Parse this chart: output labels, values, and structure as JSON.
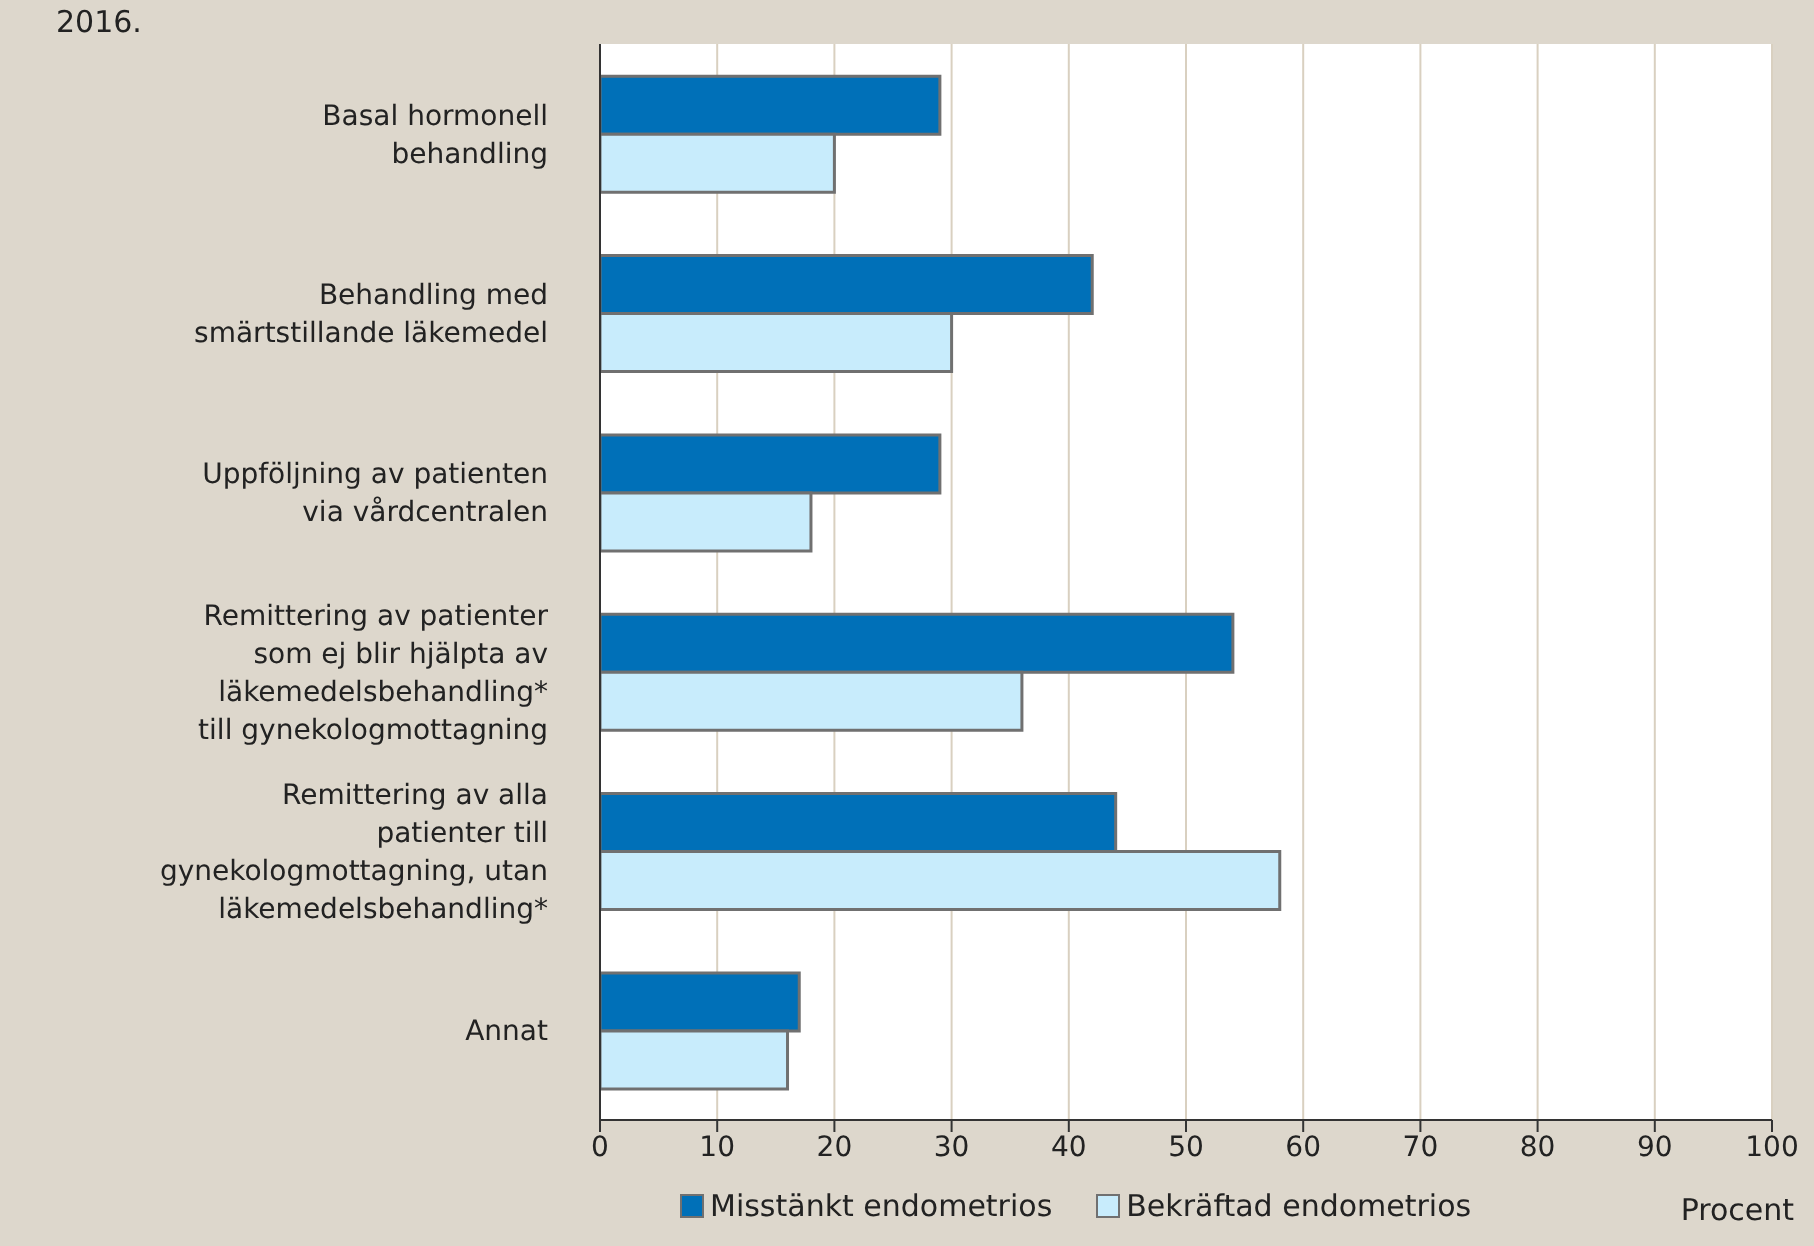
{
  "chart_data": {
    "type": "bar",
    "orientation": "horizontal",
    "title": "2016.",
    "xlabel": "Procent",
    "categories": [
      "Basal hormonell behandling",
      "Behandling med smärtstillande läkemedel",
      "Uppföljning av patienten via vårdcentralen",
      "Remittering av patienter som ej blir hjälpta av läkemedelsbehandling* till gynekologmottagning",
      "Remittering av alla patienter till gynekologmottagning, utan läkemedelsbehandling*",
      "Annat"
    ],
    "series": [
      {
        "name": "Misstänkt endometrios",
        "color": "#0070b8",
        "values": [
          29,
          42,
          29,
          54,
          44,
          17
        ]
      },
      {
        "name": "Bekräftad endometrios",
        "color": "#c8ecfc",
        "values": [
          20,
          30,
          18,
          36,
          58,
          16
        ]
      }
    ],
    "xlim": [
      0,
      100
    ],
    "xticks": [
      0,
      10,
      20,
      30,
      40,
      50,
      60,
      70,
      80,
      90,
      100
    ],
    "grid": "x",
    "legend": "bottom"
  }
}
